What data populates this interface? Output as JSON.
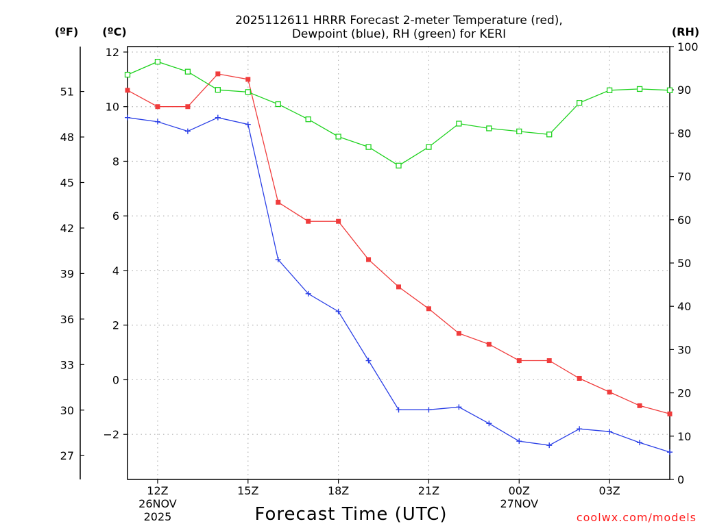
{
  "chart_data": {
    "type": "line",
    "title_line1": "2025112611 HRRR Forecast 2-meter Temperature (red),",
    "title_line2": "Dewpoint (blue), RH (green) for KERI",
    "xlabel": "Forecast Time (UTC)",
    "credit": "coolwx.com/models",
    "units": {
      "fahrenheit": "(ºF)",
      "celsius": "(ºC)",
      "rh": "(RH)"
    },
    "x_range_hours": [
      11,
      29
    ],
    "x_ticks": [
      {
        "hour": 12,
        "label": "12Z",
        "date": "26NOV",
        "year": "2025"
      },
      {
        "hour": 15,
        "label": "15Z",
        "date": "",
        "year": ""
      },
      {
        "hour": 18,
        "label": "18Z",
        "date": "",
        "year": ""
      },
      {
        "hour": 21,
        "label": "21Z",
        "date": "",
        "year": ""
      },
      {
        "hour": 24,
        "label": "00Z",
        "date": "27NOV",
        "year": ""
      },
      {
        "hour": 27,
        "label": "03Z",
        "date": "",
        "year": ""
      }
    ],
    "celsius_axis": {
      "range": [
        -3.65,
        12.2
      ],
      "ticks": [
        12,
        10,
        8,
        6,
        4,
        2,
        0,
        -2
      ],
      "tick_labels": [
        "12",
        "10",
        "8",
        "6",
        "4",
        "2",
        "0",
        "−2"
      ]
    },
    "fahrenheit_ticks": [
      "51",
      "48",
      "45",
      "42",
      "39",
      "36",
      "33",
      "30",
      "27"
    ],
    "rh_axis": {
      "range": [
        0,
        100
      ],
      "ticks": [
        "100",
        "90",
        "80",
        "70",
        "60",
        "50",
        "40",
        "30",
        "20",
        "10",
        "0"
      ]
    },
    "x": [
      11,
      12,
      13,
      14,
      15,
      16,
      17,
      18,
      19,
      20,
      21,
      22,
      23,
      24,
      25,
      26,
      27,
      28,
      29
    ],
    "series": [
      {
        "name": "2-meter Temperature",
        "color": "#f03c3c",
        "marker": "filled-square",
        "axis": "celsius",
        "values": [
          10.6,
          10.0,
          10.0,
          11.2,
          11.0,
          6.5,
          5.8,
          5.8,
          4.4,
          3.4,
          2.6,
          1.7,
          1.3,
          0.7,
          0.7,
          0.05,
          -0.45,
          -0.95,
          -1.25
        ]
      },
      {
        "name": "Dewpoint",
        "color": "#2a3fe6",
        "marker": "plus",
        "axis": "celsius",
        "values": [
          9.6,
          9.45,
          9.1,
          9.6,
          9.35,
          4.4,
          3.15,
          2.5,
          0.7,
          -1.1,
          -1.1,
          -1.0,
          -1.6,
          -2.25,
          -2.4,
          -1.8,
          -1.9,
          -2.3,
          -2.65
        ]
      },
      {
        "name": "RH",
        "color": "#1ed21e",
        "marker": "open-square",
        "axis": "rh",
        "values": [
          93.5,
          96.5,
          94.2,
          90.0,
          89.5,
          86.7,
          83.2,
          79.2,
          76.8,
          72.5,
          76.8,
          82.2,
          81.1,
          80.4,
          79.7,
          87.0,
          89.9,
          90.2,
          89.9
        ]
      }
    ]
  }
}
